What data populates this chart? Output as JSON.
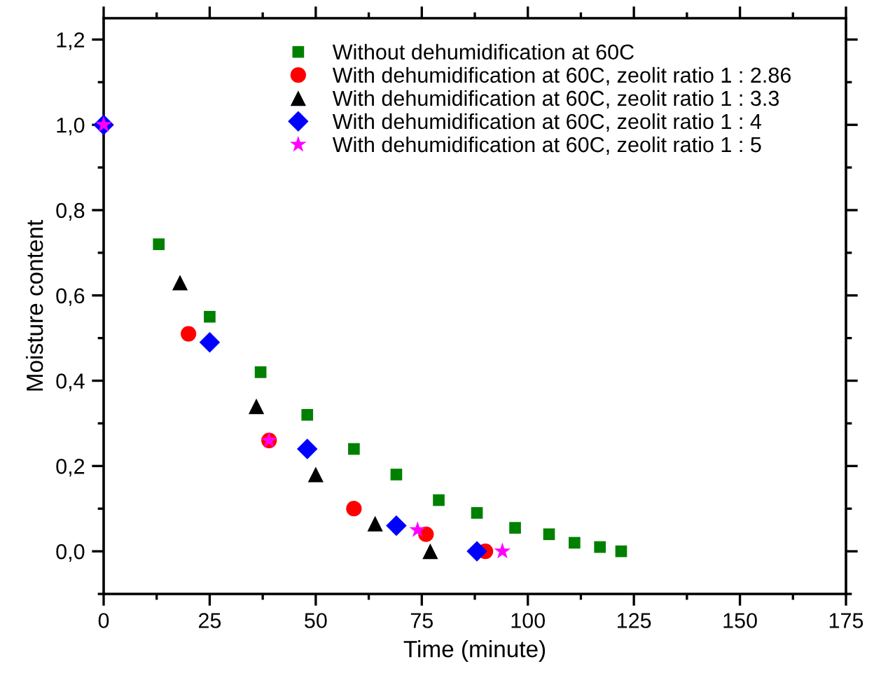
{
  "chart_data": {
    "type": "scatter",
    "xlabel": "Time (minute)",
    "ylabel": "Moisture content",
    "xlim": [
      0,
      175
    ],
    "ylim": [
      -0.1,
      1.25
    ],
    "xticks": [
      0,
      {
        "value": 12.5,
        "label": null
      },
      25,
      {
        "value": 37.5,
        "label": null
      },
      50,
      {
        "value": 62.5,
        "label": null
      },
      75,
      {
        "value": 87.5,
        "label": null
      },
      100,
      {
        "value": 112.5,
        "label": null
      },
      125,
      {
        "value": 137.5,
        "label": null
      },
      150,
      {
        "value": 162.5,
        "label": null
      },
      175
    ],
    "yticks": [
      {
        "value": -0.1,
        "label": null
      },
      {
        "value": 0,
        "label": "0,0"
      },
      {
        "value": 0.1,
        "label": null
      },
      {
        "value": 0.2,
        "label": "0,2"
      },
      {
        "value": 0.3,
        "label": null
      },
      {
        "value": 0.4,
        "label": "0,4"
      },
      {
        "value": 0.5,
        "label": null
      },
      {
        "value": 0.6,
        "label": "0,6"
      },
      {
        "value": 0.7,
        "label": null
      },
      {
        "value": 0.8,
        "label": "0,8"
      },
      {
        "value": 0.9,
        "label": null
      },
      {
        "value": 1.0,
        "label": "1,0"
      },
      {
        "value": 1.1,
        "label": null
      },
      {
        "value": 1.2,
        "label": "1,2"
      }
    ],
    "legend": "top",
    "grid": false,
    "series": [
      {
        "name": "Without dehumidification at 60C",
        "color": "#008000",
        "marker": "square",
        "x": [
          13,
          25,
          37,
          48,
          59,
          69,
          79,
          88,
          97,
          105,
          111,
          117,
          122
        ],
        "values": [
          0.72,
          0.55,
          0.42,
          0.32,
          0.24,
          0.18,
          0.12,
          0.09,
          0.055,
          0.04,
          0.02,
          0.01,
          0.0
        ]
      },
      {
        "name": "With dehumidification at 60C, zeolit ratio 1 : 2.86",
        "color": "#ff0000",
        "marker": "circle",
        "x": [
          20,
          39,
          59,
          76,
          90
        ],
        "values": [
          0.51,
          0.26,
          0.1,
          0.04,
          0.0
        ]
      },
      {
        "name": "With dehumidification at 60C, zeolit ratio 1 : 3.3",
        "color": "#000000",
        "marker": "triangle",
        "x": [
          18,
          36,
          50,
          64,
          77
        ],
        "values": [
          0.63,
          0.34,
          0.18,
          0.065,
          0.0
        ]
      },
      {
        "name": "With dehumidification at 60C, zeolit ratio 1 : 4",
        "color": "#0000ff",
        "marker": "diamond",
        "x": [
          0,
          25,
          48,
          69,
          88
        ],
        "values": [
          1.0,
          0.49,
          0.24,
          0.06,
          0.0
        ]
      },
      {
        "name": "With dehumidification at 60C, zeolit ratio 1 : 5",
        "color": "#ff00ff",
        "marker": "star",
        "x": [
          0,
          39,
          74,
          94
        ],
        "values": [
          1.0,
          0.26,
          0.05,
          0.0
        ]
      }
    ]
  }
}
